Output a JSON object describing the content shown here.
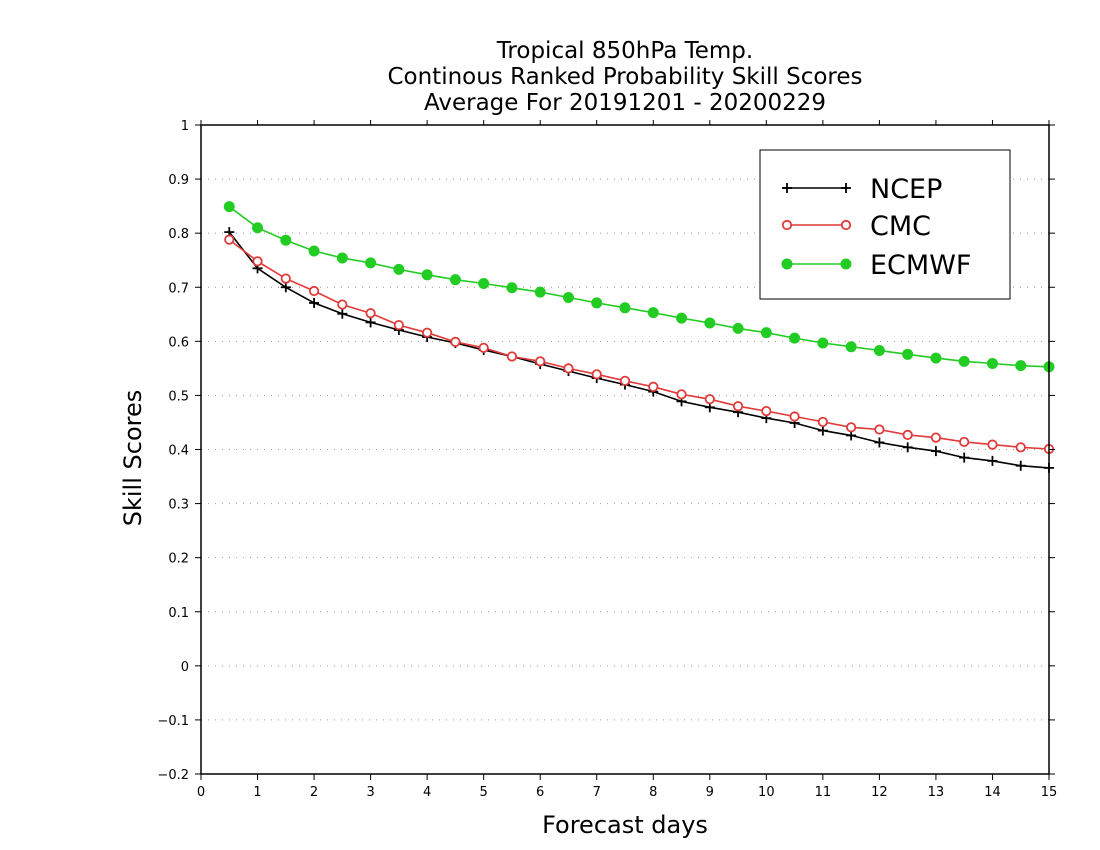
{
  "chart_data": {
    "type": "line",
    "title": [
      "Tropical 850hPa Temp.",
      "Continous Ranked Probability Skill Scores",
      "Average For 20191201 - 20200229"
    ],
    "xlabel": "Forecast days",
    "ylabel": "Skill Scores",
    "xlim": [
      0,
      15
    ],
    "ylim": [
      -0.2,
      1
    ],
    "xticks": [
      "0",
      "1",
      "2",
      "3",
      "4",
      "5",
      "6",
      "7",
      "8",
      "9",
      "10",
      "11",
      "12",
      "13",
      "14",
      "15"
    ],
    "yticks": [
      "−0.2",
      "−0.1",
      "0",
      "0.1",
      "0.2",
      "0.3",
      "0.4",
      "0.5",
      "0.6",
      "0.7",
      "0.8",
      "0.9",
      "1"
    ],
    "grid": true,
    "legend_position": "top-right",
    "x": [
      0.5,
      1,
      1.5,
      2,
      2.5,
      3,
      3.5,
      4,
      4.5,
      5,
      5.5,
      6,
      6.5,
      7,
      7.5,
      8,
      8.5,
      9,
      9.5,
      10,
      10.5,
      11,
      11.5,
      12,
      12.5,
      13,
      13.5,
      14,
      14.5,
      15
    ],
    "series": [
      {
        "name": "NCEP",
        "color": "#000000",
        "marker": "plus",
        "values": [
          0.802,
          0.735,
          0.7,
          0.671,
          0.651,
          0.635,
          0.621,
          0.608,
          0.597,
          0.584,
          0.572,
          0.558,
          0.545,
          0.532,
          0.52,
          0.507,
          0.489,
          0.478,
          0.469,
          0.458,
          0.449,
          0.435,
          0.426,
          0.413,
          0.404,
          0.397,
          0.385,
          0.379,
          0.37,
          0.366
        ]
      },
      {
        "name": "CMC",
        "color": "#e03a3a",
        "marker": "open-circle",
        "values": [
          0.788,
          0.748,
          0.716,
          0.693,
          0.668,
          0.652,
          0.63,
          0.616,
          0.599,
          0.588,
          0.572,
          0.563,
          0.55,
          0.539,
          0.527,
          0.516,
          0.502,
          0.493,
          0.48,
          0.471,
          0.461,
          0.451,
          0.441,
          0.437,
          0.427,
          0.422,
          0.414,
          0.409,
          0.404,
          0.401
        ]
      },
      {
        "name": "ECMWF",
        "color": "#22cc22",
        "marker": "filled-circle",
        "values": [
          0.849,
          0.81,
          0.787,
          0.767,
          0.754,
          0.745,
          0.733,
          0.723,
          0.714,
          0.707,
          0.699,
          0.691,
          0.681,
          0.671,
          0.662,
          0.653,
          0.643,
          0.634,
          0.624,
          0.616,
          0.606,
          0.597,
          0.59,
          0.583,
          0.576,
          0.569,
          0.563,
          0.559,
          0.555,
          0.553
        ]
      }
    ]
  }
}
